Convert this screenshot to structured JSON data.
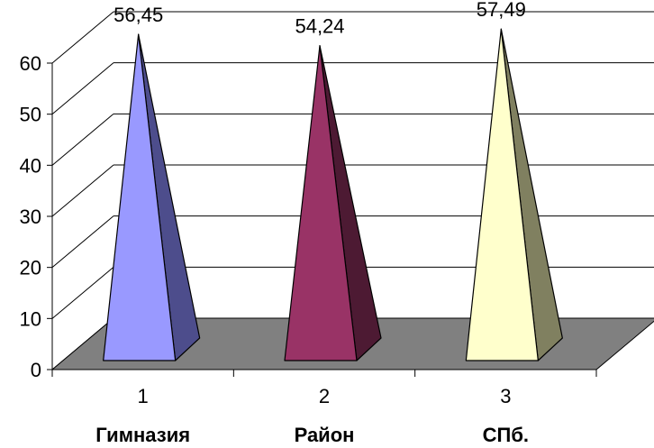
{
  "chart_data": {
    "type": "bar",
    "style": "3d-pyramid",
    "categories": [
      "1",
      "2",
      "3"
    ],
    "group_labels": [
      "Гимназия",
      "Район",
      "СПб."
    ],
    "values": [
      56.45,
      54.24,
      57.49
    ],
    "data_labels": [
      "56,45",
      "54,24",
      "57,49"
    ],
    "ylim": [
      0,
      60
    ],
    "yticks": [
      "0",
      "10",
      "20",
      "30",
      "40",
      "50",
      "60"
    ],
    "grid": true,
    "colors": {
      "front": [
        "#9999ff",
        "#993366",
        "#ffffcc"
      ],
      "side": [
        "#4d4d8c",
        "#4d1a33",
        "#808060"
      ],
      "floor": "#808080",
      "grid": "#000000"
    }
  }
}
